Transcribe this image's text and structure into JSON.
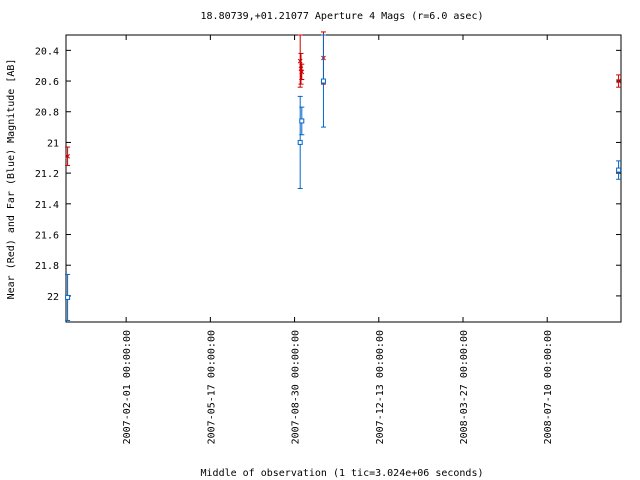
{
  "chart_data": {
    "type": "scatter",
    "title": "18.80739,+01.21077   Aperture 4 Mags (r=6.0 asec)",
    "xlabel": "Middle of observation (1 tic=3.024e+06 seconds)",
    "ylabel": "Near (Red) and Far (Blue) Magnitude [AB]",
    "x_ticks": [
      "2007-02-01 00:00:00",
      "2007-05-17 00:00:00",
      "2007-08-30 00:00:00",
      "2007-12-13 00:00:00",
      "2008-03-27 00:00:00",
      "2008-07-10 00:00:00"
    ],
    "x_range": [
      "2006-11-18",
      "2008-10-10"
    ],
    "y_ticks": [
      "20.4",
      "20.6",
      "20.8",
      "21",
      "21.2",
      "21.4",
      "21.6",
      "21.8",
      "22"
    ],
    "ylim": [
      22.17,
      20.3
    ],
    "y_inverted": true,
    "grid": false,
    "series": [
      {
        "color": "#cc0000",
        "marker": "x",
        "points": [
          {
            "x": "2006-11-20",
            "y": 21.09,
            "err": 0.06
          },
          {
            "x": "2007-09-06",
            "y": 20.47,
            "err": 0.17
          },
          {
            "x": "2007-09-07",
            "y": 20.52,
            "err": 0.1
          },
          {
            "x": "2007-09-08",
            "y": 20.54,
            "err": 0.05
          },
          {
            "x": "2007-10-05",
            "y": 20.45,
            "err": 0.17
          },
          {
            "x": "2008-10-07",
            "y": 20.6,
            "err": 0.04
          }
        ]
      },
      {
        "color": "#0066cc",
        "marker": "square",
        "points": [
          {
            "x": "2006-11-20",
            "y": 22.01,
            "err": 0.15
          },
          {
            "x": "2007-09-06",
            "y": 21.0,
            "err": 0.3
          },
          {
            "x": "2007-09-08",
            "y": 20.86,
            "err": 0.09
          },
          {
            "x": "2007-10-05",
            "y": 20.6,
            "err": 0.3
          },
          {
            "x": "2008-10-07",
            "y": 21.18,
            "err": 0.06
          }
        ]
      }
    ]
  }
}
